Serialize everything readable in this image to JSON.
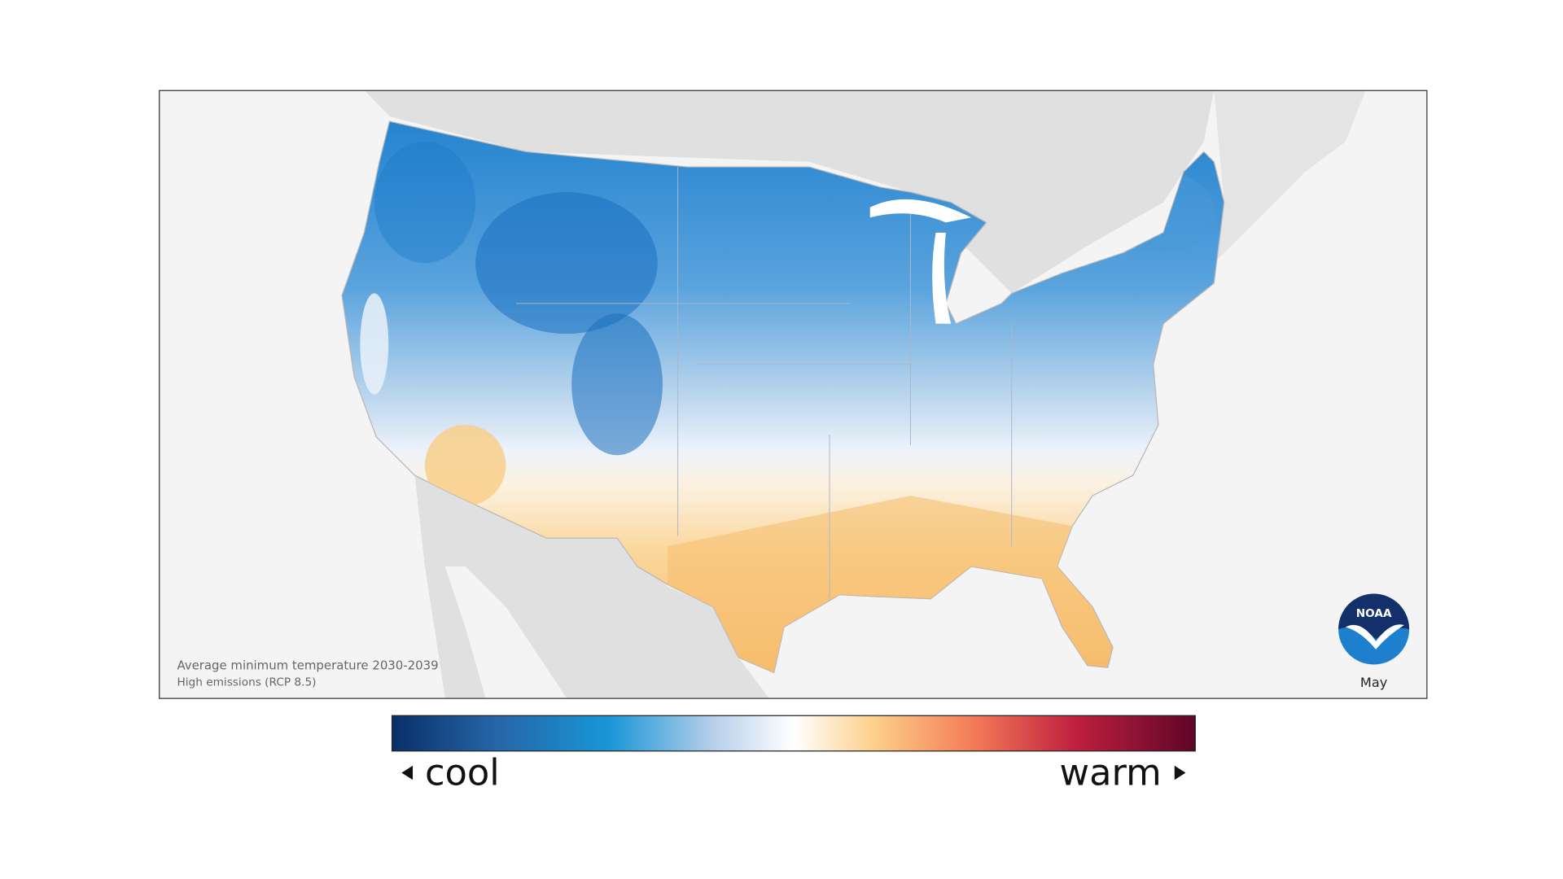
{
  "map": {
    "caption": {
      "title": "Average minimum temperature 2030-2039",
      "subtitle": "High emissions (RCP 8.5)"
    },
    "logo": "NOAA",
    "month": "May",
    "legend": {
      "low": "cool",
      "high": "warm"
    }
  }
}
